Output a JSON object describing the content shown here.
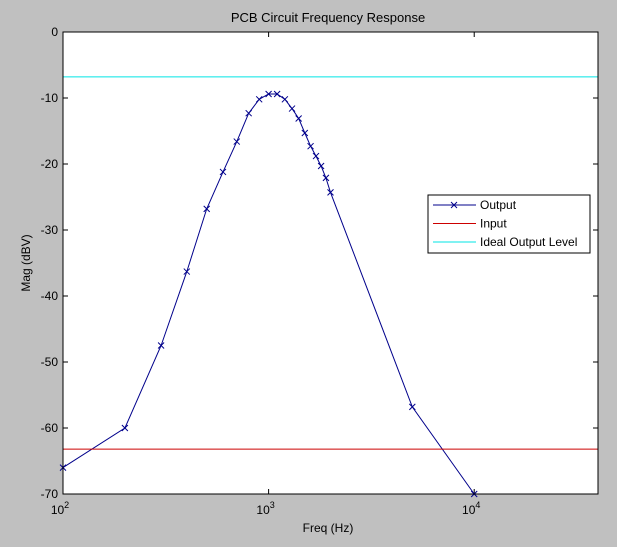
{
  "chart_data": {
    "type": "line",
    "title": "PCB Circuit Frequency Response",
    "xlabel": "Freq (Hz)",
    "ylabel": "Mag (dBV)",
    "xscale": "log",
    "xlim": [
      100,
      40000
    ],
    "ylim": [
      -70,
      0
    ],
    "grid": false,
    "legend_position": "right-middle",
    "x_ticks": [
      {
        "value": 100,
        "base": "10",
        "exp": "2"
      },
      {
        "value": 1000,
        "base": "10",
        "exp": "3"
      },
      {
        "value": 10000,
        "base": "10",
        "exp": "4"
      }
    ],
    "y_ticks": [
      {
        "value": 0,
        "label": "0"
      },
      {
        "value": -10,
        "label": "-10"
      },
      {
        "value": -20,
        "label": "-20"
      },
      {
        "value": -30,
        "label": "-30"
      },
      {
        "value": -40,
        "label": "-40"
      },
      {
        "value": -50,
        "label": "-50"
      },
      {
        "value": -60,
        "label": "-60"
      },
      {
        "value": -70,
        "label": "-70"
      }
    ],
    "series": [
      {
        "name": "Output",
        "color": "#00008b",
        "marker": "x",
        "x": [
          100,
          200,
          300,
          400,
          500,
          600,
          700,
          800,
          900,
          1000,
          1100,
          1200,
          1300,
          1400,
          1500,
          1600,
          1700,
          1800,
          1900,
          2000,
          5000,
          10000
        ],
        "y": [
          -66,
          -60,
          -47.5,
          -36.3,
          -26.8,
          -21.2,
          -16.6,
          -12.3,
          -10.2,
          -9.4,
          -9.4,
          -10.2,
          -11.6,
          -13.1,
          -15.3,
          -17.3,
          -18.8,
          -20.3,
          -22.1,
          -24.3,
          -56.8,
          -70
        ]
      },
      {
        "name": "Input",
        "color": "#cc0000",
        "marker": "none",
        "x": [
          100,
          40000
        ],
        "y": [
          -63.2,
          -63.2
        ]
      },
      {
        "name": "Ideal Output Level",
        "color": "#00e5e5",
        "marker": "none",
        "x": [
          100,
          40000
        ],
        "y": [
          -6.8,
          -6.8
        ]
      }
    ]
  }
}
